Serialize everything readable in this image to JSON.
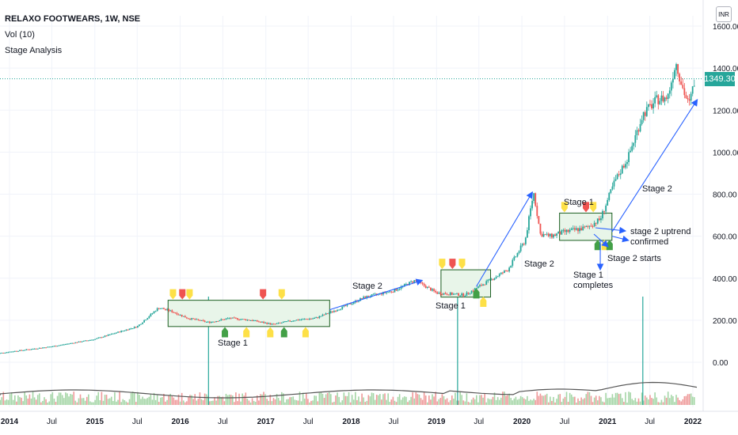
{
  "header": {
    "symbol_line": "RELAXO FOOTWEARS, 1W, NSE",
    "indicator_volume": "Vol (10)",
    "indicator_stage": "Stage Analysis"
  },
  "currency_badge": "INR",
  "last_price": "1349.30",
  "colors": {
    "up": "#26a69a",
    "down": "#ef5350",
    "annotation": "#2962ff",
    "box_fill": "#e8f5e9",
    "marker_yellow": "#fde047",
    "marker_red": "#ef5350",
    "marker_green": "#43a047"
  },
  "chart_data": {
    "type": "candlestick",
    "symbol": "RELAXO FOOTWEARS",
    "interval": "1W",
    "exchange": "NSE",
    "y_axis_labels": [
      "1600.00",
      "1400.00",
      "1200.00",
      "1000.00",
      "800.00",
      "600.00",
      "400.00",
      "200.00",
      "0.00"
    ],
    "x_axis_labels": [
      "2014",
      "Jul",
      "2015",
      "Jul",
      "2016",
      "Jul",
      "2017",
      "Jul",
      "2018",
      "Jul",
      "2019",
      "Jul",
      "2020",
      "Jul",
      "2021",
      "Jul",
      "2022"
    ],
    "ylim": [
      0,
      1640
    ],
    "grid": true,
    "price_path": [
      [
        "2013-11-01",
        40
      ],
      [
        "2014-01-01",
        50
      ],
      [
        "2014-07-01",
        75
      ],
      [
        "2015-01-01",
        110
      ],
      [
        "2015-03-01",
        130
      ],
      [
        "2015-07-01",
        170
      ],
      [
        "2015-10-01",
        260
      ],
      [
        "2015-12-01",
        240
      ],
      [
        "2016-02-01",
        210
      ],
      [
        "2016-05-01",
        190
      ],
      [
        "2016-08-01",
        210
      ],
      [
        "2016-11-01",
        200
      ],
      [
        "2017-02-01",
        180
      ],
      [
        "2017-05-01",
        200
      ],
      [
        "2017-08-01",
        210
      ],
      [
        "2017-11-01",
        250
      ],
      [
        "2018-03-01",
        310
      ],
      [
        "2018-07-01",
        340
      ],
      [
        "2018-10-01",
        390
      ],
      [
        "2019-01-01",
        330
      ],
      [
        "2019-05-01",
        320
      ],
      [
        "2019-08-01",
        380
      ],
      [
        "2019-11-01",
        440
      ],
      [
        "2020-01-15",
        580
      ],
      [
        "2020-02-20",
        810
      ],
      [
        "2020-03-20",
        610
      ],
      [
        "2020-05-01",
        600
      ],
      [
        "2020-07-01",
        620
      ],
      [
        "2020-10-01",
        640
      ],
      [
        "2020-12-01",
        680
      ],
      [
        "2021-02-01",
        860
      ],
      [
        "2021-04-01",
        980
      ],
      [
        "2021-06-01",
        1180
      ],
      [
        "2021-08-01",
        1250
      ],
      [
        "2021-09-15",
        1260
      ],
      [
        "2021-10-20",
        1430
      ],
      [
        "2021-11-20",
        1300
      ],
      [
        "2021-12-15",
        1220
      ],
      [
        "2022-01-10",
        1349.3
      ]
    ],
    "last_price": 1349.3,
    "annotations": [
      {
        "text": "Stage 1",
        "type": "text"
      },
      {
        "text": "Stage 2",
        "type": "text"
      },
      {
        "text": "Stage 1",
        "type": "text"
      },
      {
        "text": "Stage 2",
        "type": "text"
      },
      {
        "text": "Stage 1",
        "type": "text"
      },
      {
        "text": "Stage 1\ncompletes",
        "type": "text"
      },
      {
        "text": "Stage 2 starts",
        "type": "text"
      },
      {
        "text": "stage 2 uptrend\nconfirmed",
        "type": "text"
      },
      {
        "text": "Stage 2",
        "type": "text"
      }
    ],
    "boxes": [
      {
        "from": "2015-11-10",
        "to": "2017-10-01",
        "low": 170,
        "high": 295
      },
      {
        "from": "2019-01-20",
        "to": "2019-08-20",
        "low": 310,
        "high": 440
      },
      {
        "from": "2020-06-10",
        "to": "2021-01-20",
        "low": 580,
        "high": 710
      }
    ],
    "markers": [
      {
        "date": "2015-12-01",
        "price": 295,
        "color": "yellow",
        "shape": "down"
      },
      {
        "date": "2016-01-10",
        "price": 295,
        "color": "red",
        "shape": "down"
      },
      {
        "date": "2016-02-10",
        "price": 295,
        "color": "yellow",
        "shape": "down"
      },
      {
        "date": "2016-07-10",
        "price": 175,
        "color": "green",
        "shape": "up"
      },
      {
        "date": "2016-10-10",
        "price": 175,
        "color": "yellow",
        "shape": "up"
      },
      {
        "date": "2016-12-20",
        "price": 295,
        "color": "red",
        "shape": "down"
      },
      {
        "date": "2017-03-10",
        "price": 295,
        "color": "yellow",
        "shape": "down"
      },
      {
        "date": "2017-01-20",
        "price": 175,
        "color": "yellow",
        "shape": "up"
      },
      {
        "date": "2017-03-20",
        "price": 175,
        "color": "green",
        "shape": "up"
      },
      {
        "date": "2017-06-20",
        "price": 175,
        "color": "yellow",
        "shape": "up"
      },
      {
        "date": "2019-01-25",
        "price": 440,
        "color": "yellow",
        "shape": "down"
      },
      {
        "date": "2019-03-10",
        "price": 440,
        "color": "red",
        "shape": "down"
      },
      {
        "date": "2019-04-20",
        "price": 440,
        "color": "yellow",
        "shape": "down"
      },
      {
        "date": "2019-06-20",
        "price": 360,
        "color": "green",
        "shape": "up"
      },
      {
        "date": "2019-07-20",
        "price": 320,
        "color": "yellow",
        "shape": "up"
      },
      {
        "date": "2020-07-01",
        "price": 710,
        "color": "yellow",
        "shape": "down"
      },
      {
        "date": "2020-10-01",
        "price": 710,
        "color": "red",
        "shape": "down"
      },
      {
        "date": "2020-11-01",
        "price": 710,
        "color": "yellow",
        "shape": "down"
      },
      {
        "date": "2020-11-20",
        "price": 590,
        "color": "green",
        "shape": "up"
      },
      {
        "date": "2020-12-20",
        "price": 590,
        "color": "yellow",
        "shape": "up"
      },
      {
        "date": "2021-01-10",
        "price": 590,
        "color": "green",
        "shape": "up"
      }
    ],
    "arrows": [
      {
        "from": [
          "2017-10-01",
          250
        ],
        "to": [
          "2018-11-01",
          390
        ]
      },
      {
        "from": [
          "2019-06-20",
          360
        ],
        "to": [
          "2020-02-15",
          810
        ]
      },
      {
        "from": [
          "2021-01-20",
          620
        ],
        "to": [
          "2022-01-20",
          1250
        ]
      },
      {
        "from": [
          "2021-01-20",
          600
        ],
        "to": [
          "2021-04-01",
          580
        ]
      },
      {
        "from": [
          "2020-12-01",
          580
        ],
        "to": [
          "2020-12-01",
          440
        ]
      }
    ],
    "volume_spikes": [
      "2016-05-01",
      "2019-04-01",
      "2021-06-01"
    ]
  }
}
